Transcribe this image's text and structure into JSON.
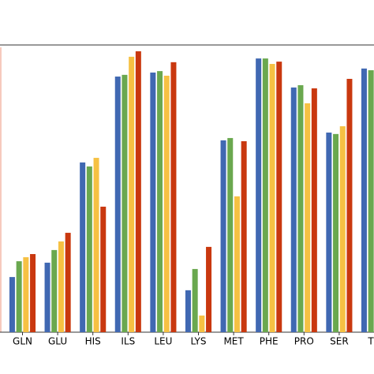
{
  "chart_data": {
    "type": "bar",
    "categories": [
      "GLN",
      "GLU",
      "HIS",
      "ILS",
      "LEU",
      "LYS",
      "MET",
      "PHE",
      "PRO",
      "SER",
      "TH"
    ],
    "series": [
      {
        "color": "#4068b2",
        "values": [
          19.2,
          24.2,
          59.1,
          89.0,
          90.4,
          14.6,
          66.8,
          95.3,
          85.2,
          69.5,
          91.8
        ]
      },
      {
        "color": "#6aa84f",
        "values": [
          24.7,
          28.6,
          57.7,
          89.6,
          90.9,
          22.0,
          67.6,
          95.3,
          86.0,
          69.0,
          91.2
        ]
      },
      {
        "color": "#f6c143",
        "values": [
          26.1,
          31.6,
          60.7,
          95.9,
          89.3,
          5.8,
          47.3,
          93.4,
          79.7,
          71.7,
          null
        ]
      },
      {
        "color": "#c9380f",
        "values": [
          27.2,
          34.6,
          43.7,
          97.8,
          94.0,
          29.7,
          66.5,
          94.2,
          84.9,
          88.2,
          null
        ]
      }
    ],
    "ylim": [
      0,
      100
    ]
  }
}
